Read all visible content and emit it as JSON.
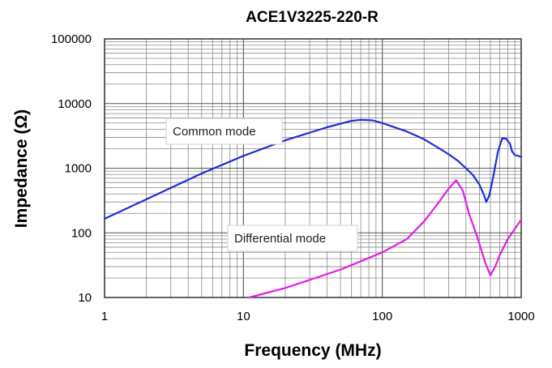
{
  "chart_data": {
    "type": "line",
    "title": "ACE1V3225-220-R",
    "xlabel": "Frequency (MHz)",
    "ylabel": "Impedance (Ω)",
    "x_scale": "log",
    "y_scale": "log",
    "xlim": [
      1,
      1000
    ],
    "ylim": [
      10,
      100000
    ],
    "x_ticks": [
      1,
      10,
      100,
      1000
    ],
    "x_tick_labels": [
      "1",
      "10",
      "100",
      "1000"
    ],
    "y_ticks": [
      10,
      100,
      1000,
      10000,
      100000
    ],
    "y_tick_labels": [
      "10",
      "100",
      "1000",
      "10000",
      "100000"
    ],
    "grid": true,
    "legend": "none",
    "series": [
      {
        "name": "Common mode",
        "color": "#1f2fd0",
        "points": [
          [
            1,
            165
          ],
          [
            2,
            330
          ],
          [
            5,
            830
          ],
          [
            10,
            1550
          ],
          [
            20,
            2700
          ],
          [
            40,
            4300
          ],
          [
            60,
            5400
          ],
          [
            70,
            5600
          ],
          [
            85,
            5500
          ],
          [
            100,
            5000
          ],
          [
            150,
            3700
          ],
          [
            200,
            2800
          ],
          [
            250,
            2100
          ],
          [
            300,
            1650
          ],
          [
            350,
            1300
          ],
          [
            400,
            1000
          ],
          [
            450,
            780
          ],
          [
            500,
            560
          ],
          [
            540,
            380
          ],
          [
            560,
            300
          ],
          [
            590,
            380
          ],
          [
            630,
            750
          ],
          [
            680,
            1800
          ],
          [
            730,
            2900
          ],
          [
            780,
            2850
          ],
          [
            830,
            2400
          ],
          [
            860,
            1800
          ],
          [
            900,
            1600
          ],
          [
            1000,
            1500
          ]
        ]
      },
      {
        "name": "Differential mode",
        "color": "#e020e0",
        "points": [
          [
            11,
            10
          ],
          [
            20,
            14
          ],
          [
            50,
            27
          ],
          [
            100,
            50
          ],
          [
            150,
            80
          ],
          [
            200,
            150
          ],
          [
            250,
            280
          ],
          [
            300,
            480
          ],
          [
            340,
            650
          ],
          [
            380,
            450
          ],
          [
            420,
            200
          ],
          [
            480,
            90
          ],
          [
            550,
            35
          ],
          [
            600,
            22
          ],
          [
            650,
            30
          ],
          [
            700,
            45
          ],
          [
            800,
            80
          ],
          [
            1000,
            160
          ]
        ]
      }
    ],
    "annotations": [
      {
        "text": "Common mode"
      },
      {
        "text": "Differential mode"
      }
    ]
  }
}
